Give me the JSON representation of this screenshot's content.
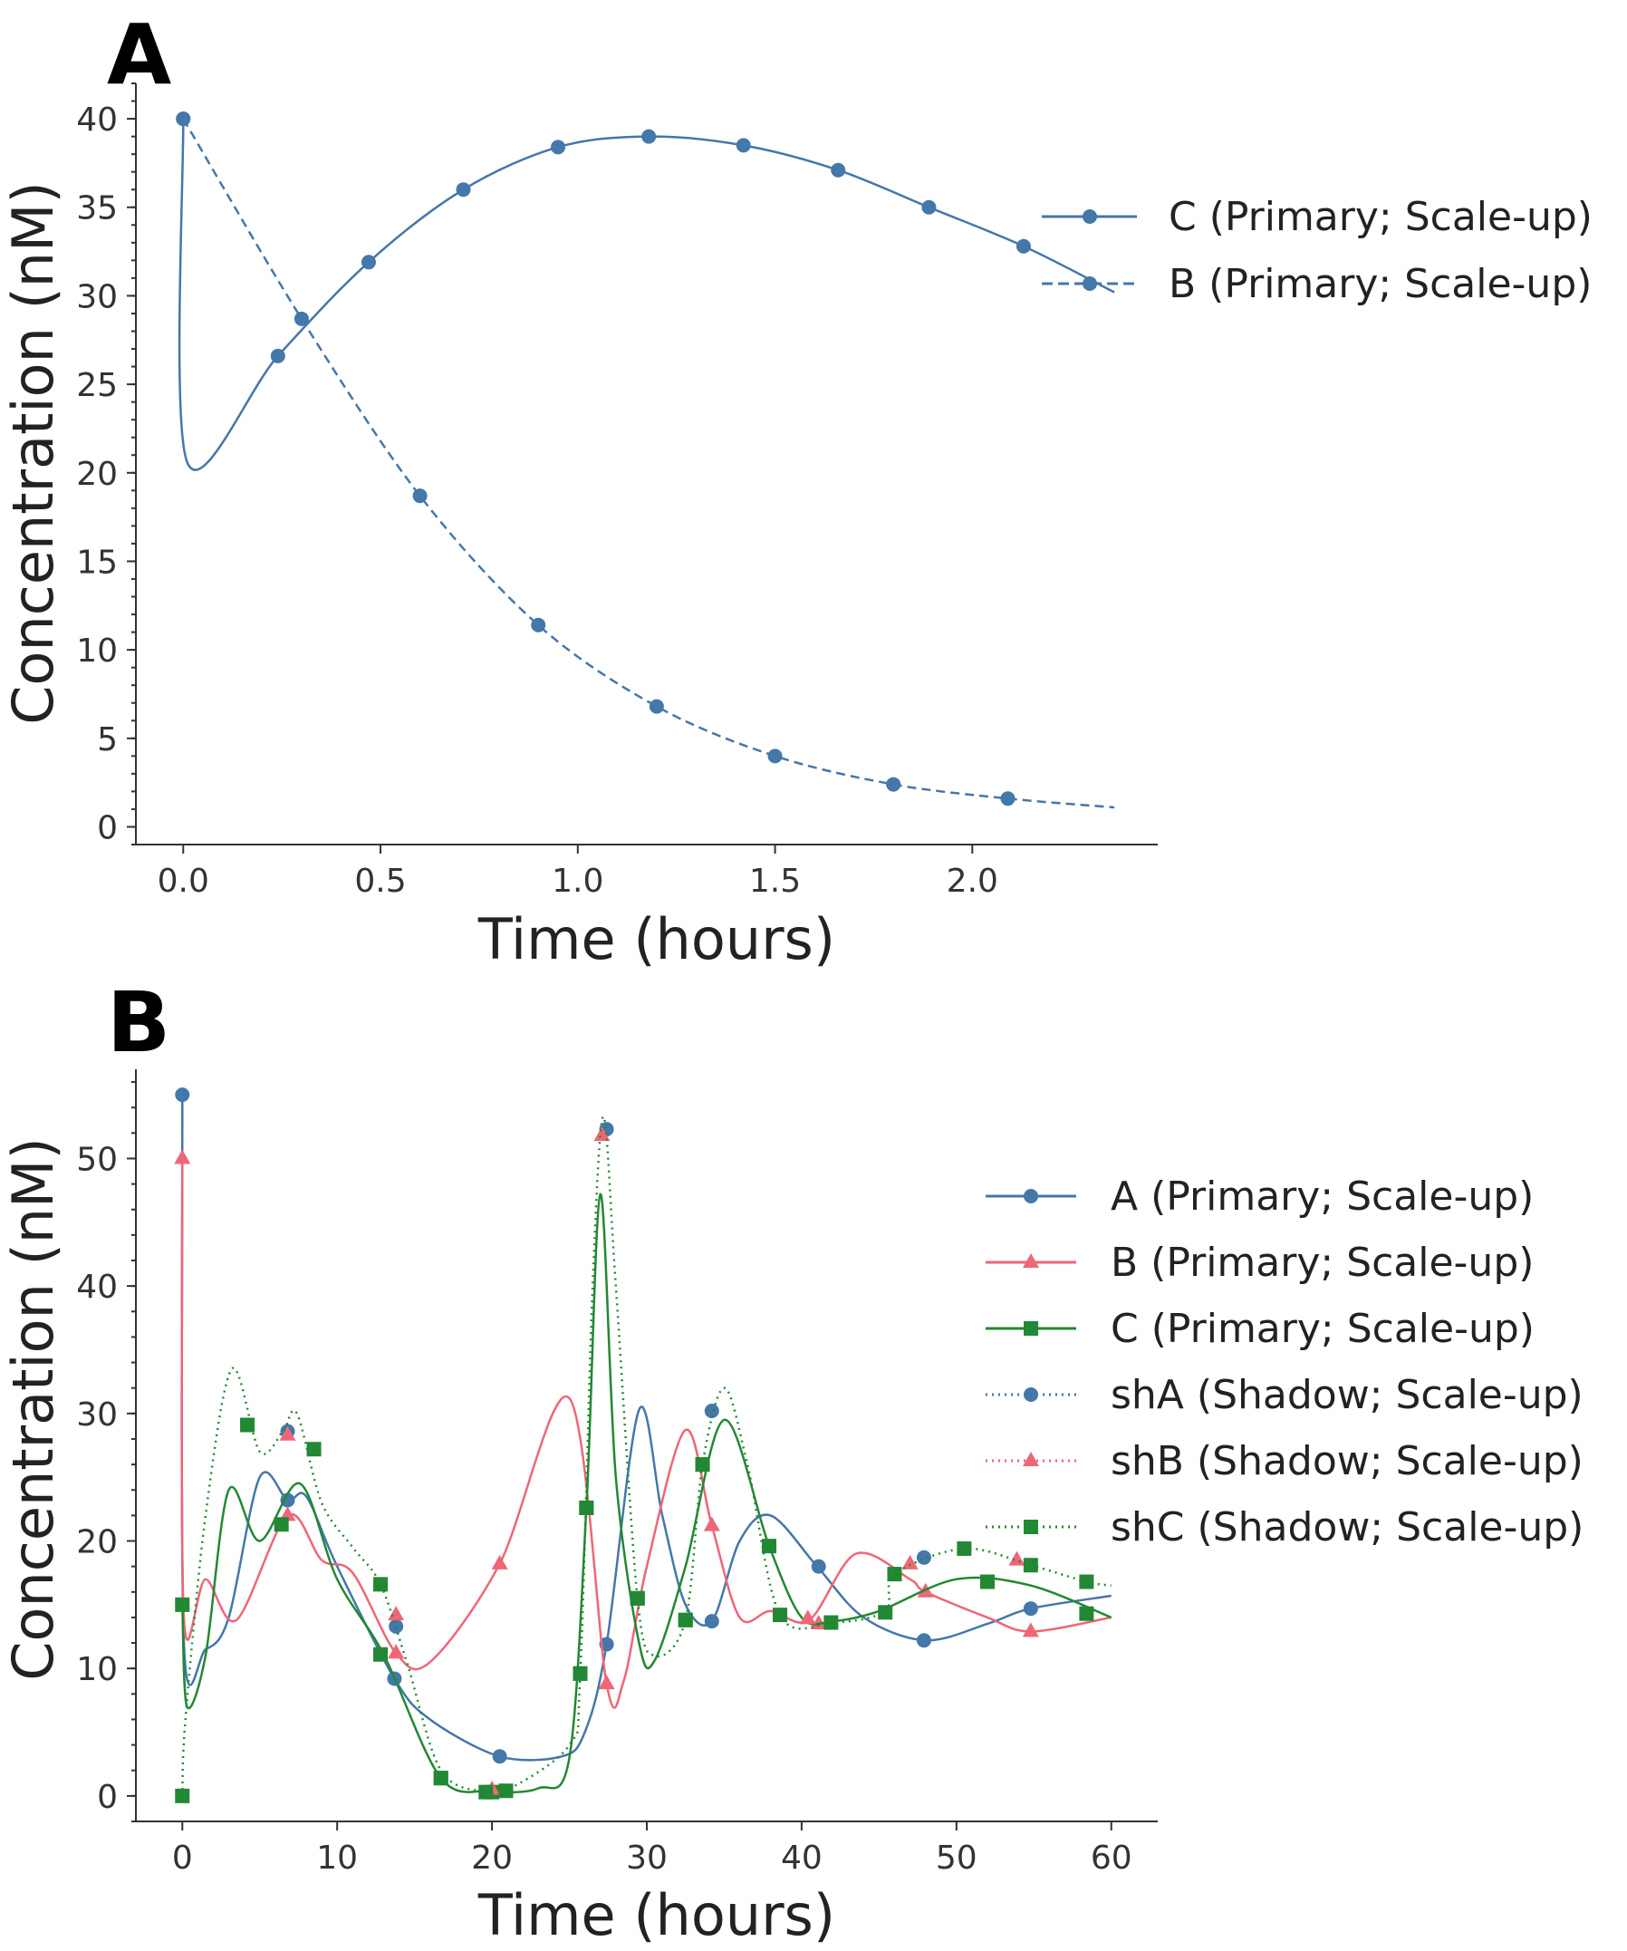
{
  "chart_data": [
    {
      "panel": "A",
      "type": "line",
      "xlabel": "Time (hours)",
      "ylabel": "Concentration (nM)",
      "xlim": [
        -0.12,
        2.47
      ],
      "ylim": [
        -1,
        42
      ],
      "xticks": [
        "0.0",
        "0.5",
        "1.0",
        "1.5",
        "2.0"
      ],
      "yticks": [
        "0",
        "5",
        "10",
        "15",
        "20",
        "25",
        "30",
        "35",
        "40"
      ],
      "grid": false,
      "legend_position": "right",
      "series": [
        {
          "name": "C (Primary; Scale-up)",
          "color": "#4477AA",
          "line": "solid",
          "marker": "circle",
          "curve": [
            [
              0,
              40
            ],
            [
              0.01,
              20.6
            ],
            [
              0.24,
              26.6
            ],
            [
              0.47,
              31.9
            ],
            [
              0.71,
              36.0
            ],
            [
              0.95,
              38.4
            ],
            [
              1.18,
              39.0
            ],
            [
              1.42,
              38.5
            ],
            [
              1.66,
              37.1
            ],
            [
              1.89,
              35.0
            ],
            [
              2.13,
              32.8
            ],
            [
              2.36,
              30.2
            ]
          ],
          "markers": [
            [
              0,
              40
            ],
            [
              0.24,
              26.6
            ],
            [
              0.47,
              31.9
            ],
            [
              0.71,
              36.0
            ],
            [
              0.95,
              38.4
            ],
            [
              1.18,
              39.0
            ],
            [
              1.42,
              38.5
            ],
            [
              1.66,
              37.1
            ],
            [
              1.89,
              35.0
            ],
            [
              2.13,
              32.8
            ]
          ]
        },
        {
          "name": "B (Primary; Scale-up)",
          "color": "#4477AA",
          "line": "dashed",
          "marker": "circle",
          "curve": [
            [
              0,
              40
            ],
            [
              0.3,
              28.7
            ],
            [
              0.6,
              18.7
            ],
            [
              0.9,
              11.4
            ],
            [
              1.2,
              6.8
            ],
            [
              1.5,
              4.0
            ],
            [
              1.8,
              2.4
            ],
            [
              2.09,
              1.6
            ],
            [
              2.36,
              1.1
            ]
          ],
          "markers": [
            [
              0,
              40
            ],
            [
              0.3,
              28.7
            ],
            [
              0.6,
              18.7
            ],
            [
              0.9,
              11.4
            ],
            [
              1.2,
              6.8
            ],
            [
              1.5,
              4.0
            ],
            [
              1.8,
              2.4
            ],
            [
              2.09,
              1.6
            ]
          ]
        }
      ]
    },
    {
      "panel": "B",
      "type": "line",
      "xlabel": "Time (hours)",
      "ylabel": "Concentration (nM)",
      "xlim": [
        -3,
        63
      ],
      "ylim": [
        -2,
        57
      ],
      "xticks": [
        "0",
        "10",
        "20",
        "30",
        "40",
        "50",
        "60"
      ],
      "yticks": [
        "0",
        "10",
        "20",
        "30",
        "40",
        "50"
      ],
      "grid": false,
      "legend_position": "right",
      "series": [
        {
          "name": "A (Primary; Scale-up)",
          "color": "#4477AA",
          "line": "solid",
          "marker": "circle",
          "curve": [
            [
              0,
              55
            ],
            [
              0.1,
              12
            ],
            [
              1.5,
              11.5
            ],
            [
              3,
              14
            ],
            [
              5,
              25
            ],
            [
              6.8,
              23.2
            ],
            [
              8,
              23.5
            ],
            [
              10,
              18
            ],
            [
              13.7,
              9.2
            ],
            [
              16,
              6
            ],
            [
              20.5,
              3.1
            ],
            [
              24.5,
              3.1
            ],
            [
              26,
              5
            ],
            [
              27.4,
              11.9
            ],
            [
              29.5,
              30.3
            ],
            [
              31,
              22
            ],
            [
              32.5,
              15
            ],
            [
              34.2,
              13.7
            ],
            [
              36,
              20
            ],
            [
              38,
              22
            ],
            [
              41,
              18
            ],
            [
              44,
              14
            ],
            [
              48,
              12.2
            ],
            [
              52,
              13.5
            ],
            [
              54.8,
              14.7
            ],
            [
              60,
              15.7
            ]
          ],
          "markers": [
            [
              0,
              55
            ],
            [
              6.8,
              23.2
            ],
            [
              13.7,
              9.2
            ],
            [
              20.5,
              3.1
            ],
            [
              27.4,
              11.9
            ],
            [
              34.2,
              13.7
            ],
            [
              41.1,
              18.0
            ],
            [
              47.9,
              12.2
            ],
            [
              54.8,
              14.7
            ]
          ]
        },
        {
          "name": "B (Primary; Scale-up)",
          "color": "#EE6677",
          "line": "solid",
          "marker": "triangle",
          "curve": [
            [
              0,
              50
            ],
            [
              0.1,
              14
            ],
            [
              1.5,
              17
            ],
            [
              3.5,
              13.8
            ],
            [
              6.8,
              22
            ],
            [
              9,
              18.5
            ],
            [
              11,
              17.5
            ],
            [
              13.8,
              11.2
            ],
            [
              16,
              10.5
            ],
            [
              20.5,
              18.2
            ],
            [
              25,
              31.2
            ],
            [
              27.4,
              8.8
            ],
            [
              28.5,
              9
            ],
            [
              30,
              18
            ],
            [
              32.5,
              28.7
            ],
            [
              34.2,
              21.2
            ],
            [
              36,
              14
            ],
            [
              38,
              14.5
            ],
            [
              40.5,
              13.8
            ],
            [
              43.5,
              19
            ],
            [
              47,
              17
            ],
            [
              48,
              16
            ],
            [
              52,
              14
            ],
            [
              54.8,
              12.9
            ],
            [
              60,
              14
            ]
          ],
          "markers": [
            [
              0,
              50
            ],
            [
              6.8,
              22.0
            ],
            [
              13.8,
              11.2
            ],
            [
              20.5,
              18.2
            ],
            [
              27.4,
              8.8
            ],
            [
              34.2,
              21.2
            ],
            [
              41.1,
              13.5
            ],
            [
              48.0,
              16.0
            ],
            [
              54.8,
              12.9
            ]
          ]
        },
        {
          "name": "C (Primary; Scale-up)",
          "color": "#228833",
          "line": "solid",
          "marker": "square",
          "curve": [
            [
              0,
              15
            ],
            [
              0.3,
              7
            ],
            [
              1.5,
              11
            ],
            [
              3,
              24
            ],
            [
              5,
              20
            ],
            [
              7.6,
              24.5
            ],
            [
              10,
              17
            ],
            [
              13,
              11.1
            ],
            [
              16.7,
              1.4
            ],
            [
              20,
              0.4
            ],
            [
              23,
              0.6
            ],
            [
              25,
              3
            ],
            [
              26.1,
              22.6
            ],
            [
              27,
              47.2
            ],
            [
              28,
              25
            ],
            [
              29.5,
              12
            ],
            [
              30.5,
              10.6
            ],
            [
              32.5,
              18
            ],
            [
              35,
              29.5
            ],
            [
              37.9,
              19.6
            ],
            [
              40,
              14
            ],
            [
              42,
              13.7
            ],
            [
              45,
              14.5
            ],
            [
              50,
              17
            ],
            [
              54.8,
              16.5
            ],
            [
              60,
              14
            ]
          ],
          "markers": [
            [
              0,
              15
            ],
            [
              6.4,
              21.3
            ],
            [
              12.8,
              11.1
            ],
            [
              16.7,
              1.4
            ],
            [
              20.0,
              0.3
            ],
            [
              25.7,
              9.6
            ],
            [
              26.1,
              22.6
            ],
            [
              29.4,
              15.5
            ],
            [
              32.5,
              13.8
            ],
            [
              33.6,
              26.0
            ],
            [
              37.9,
              19.6
            ],
            [
              41.9,
              13.6
            ],
            [
              45.4,
              14.4
            ],
            [
              52.0,
              16.8
            ],
            [
              58.4,
              14.3
            ]
          ]
        },
        {
          "name": "shA (Shadow; Scale-up)",
          "color": "#4477AA",
          "line": "dotted",
          "marker": "circle",
          "curve": [],
          "markers": [
            [
              6.8,
              28.6
            ],
            [
              13.8,
              13.3
            ],
            [
              27.4,
              52.3
            ],
            [
              34.2,
              30.2
            ],
            [
              47.9,
              18.7
            ]
          ]
        },
        {
          "name": "shB (Shadow; Scale-up)",
          "color": "#EE6677",
          "line": "dotted",
          "marker": "triangle",
          "curve": [],
          "markers": [
            [
              6.8,
              28.3
            ],
            [
              13.8,
              14.2
            ],
            [
              20.0,
              0.5
            ],
            [
              27.1,
              51.8
            ],
            [
              40.4,
              13.9
            ],
            [
              47.0,
              18.2
            ],
            [
              53.9,
              18.5
            ]
          ]
        },
        {
          "name": "shC (Shadow; Scale-up)",
          "color": "#228833",
          "line": "dotted",
          "marker": "square",
          "curve": [
            [
              0,
              0
            ],
            [
              0.2,
              6
            ],
            [
              1.5,
              22
            ],
            [
              3.2,
              33.5
            ],
            [
              5,
              27
            ],
            [
              6.5,
              28.6
            ],
            [
              7.4,
              30
            ],
            [
              9,
              23
            ],
            [
              11,
              19.5
            ],
            [
              12.8,
              16.6
            ],
            [
              14.5,
              10.5
            ],
            [
              16.7,
              2
            ],
            [
              19.6,
              0.3
            ],
            [
              20.9,
              0.4
            ],
            [
              25,
              4
            ],
            [
              25.7,
              9.6
            ],
            [
              26.5,
              40
            ],
            [
              27.2,
              53.3
            ],
            [
              28,
              40
            ],
            [
              29.4,
              15.5
            ],
            [
              30.5,
              11
            ],
            [
              32.5,
              13.8
            ],
            [
              33.6,
              26
            ],
            [
              35,
              32
            ],
            [
              36.5,
              26
            ],
            [
              38.6,
              14.2
            ],
            [
              42,
              13.6
            ],
            [
              45.4,
              14.5
            ],
            [
              46,
              17.4
            ],
            [
              50.5,
              19.4
            ],
            [
              54.8,
              18.1
            ],
            [
              58.4,
              16.8
            ],
            [
              60,
              16.5
            ]
          ],
          "markers": [
            [
              0,
              0
            ],
            [
              4.2,
              29.1
            ],
            [
              8.5,
              27.2
            ],
            [
              12.8,
              16.6
            ],
            [
              16.7,
              1.4
            ],
            [
              19.6,
              0.3
            ],
            [
              20.9,
              0.4
            ],
            [
              25.7,
              9.6
            ],
            [
              26.1,
              22.6
            ],
            [
              29.4,
              15.5
            ],
            [
              32.5,
              13.8
            ],
            [
              33.6,
              26.0
            ],
            [
              38.6,
              14.2
            ],
            [
              46.0,
              17.4
            ],
            [
              50.5,
              19.4
            ],
            [
              54.8,
              18.1
            ],
            [
              58.4,
              16.8
            ]
          ]
        }
      ]
    }
  ],
  "panels": {
    "a": {
      "letter": "A",
      "xlabel": "Time (hours)",
      "ylabel": "Concentration (nM)",
      "legend": [
        "C (Primary; Scale-up)",
        "B (Primary; Scale-up)"
      ]
    },
    "b": {
      "letter": "B",
      "xlabel": "Time (hours)",
      "ylabel": "Concentration (nM)",
      "legend": [
        "A (Primary; Scale-up)",
        "B (Primary; Scale-up)",
        "C (Primary; Scale-up)",
        "shA (Shadow; Scale-up)",
        "shB (Shadow; Scale-up)",
        "shC (Shadow; Scale-up)"
      ]
    }
  }
}
